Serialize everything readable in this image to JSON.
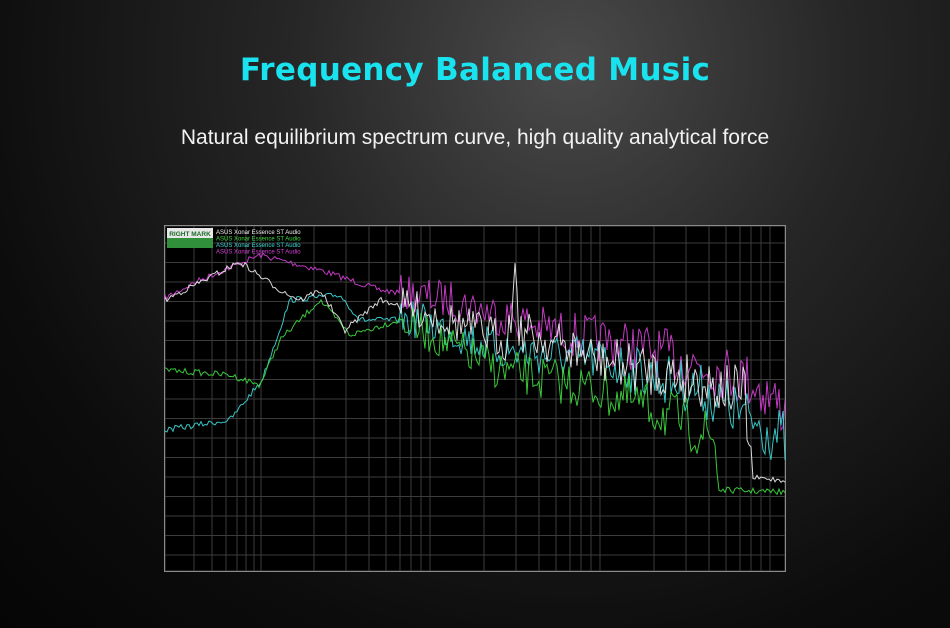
{
  "header": {
    "title": "Frequency Balanced Music",
    "subtitle": "Natural equilibrium spectrum curve, high quality analytical force"
  },
  "graph": {
    "logo": "RIGHT MARK",
    "legend": [
      {
        "name": "ASUS Xonar Essence ST Audio",
        "color": "#f0f0f0"
      },
      {
        "name": "ASUS Xonar Essence ST Audio",
        "color": "#3fdc3f"
      },
      {
        "name": "ASUS Xonar Essence ST Audio",
        "color": "#3fd8d8"
      },
      {
        "name": "ASUS Xonar Essence ST Audio",
        "color": "#d640d6"
      }
    ]
  }
}
